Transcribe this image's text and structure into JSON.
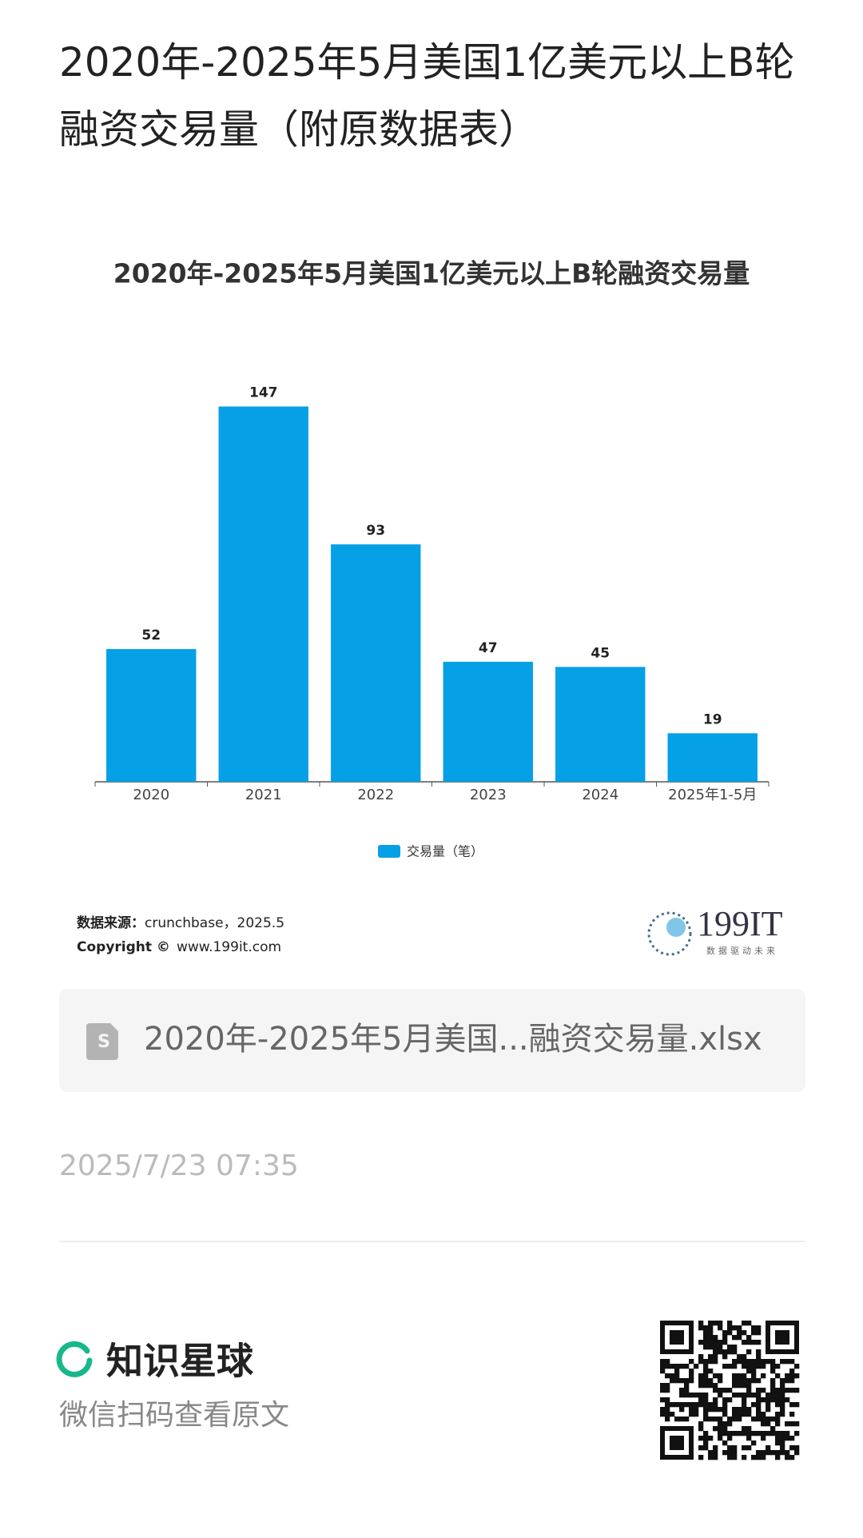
{
  "header": {
    "title": "2020年-2025年5月美国1亿美元以上B轮融资交易量（附原数据表）"
  },
  "chart_data": {
    "type": "bar",
    "title": "2020年-2025年5月美国1亿美元以上B轮融资交易量",
    "categories": [
      "2020",
      "2021",
      "2022",
      "2023",
      "2024",
      "2025年1-5月"
    ],
    "series": [
      {
        "name": "交易量（笔）",
        "color": "#06a0e6",
        "values": [
          52,
          147,
          93,
          47,
          45,
          19
        ]
      }
    ],
    "ylim": [
      0,
      160
    ],
    "legend": "bottom"
  },
  "source": {
    "label": "数据来源：",
    "text": "crunchbase，2025.5"
  },
  "copyright": {
    "label": "Copyright ©",
    "text": "www.199it.com"
  },
  "logo": {
    "name": "199IT",
    "slogan": "数据驱动未来"
  },
  "attachment": {
    "file_name": "2020年-2025年5月美国...融资交易量.xlsx"
  },
  "timestamp": "2025/7/23 07:35",
  "footer": {
    "brand": "知识星球",
    "hint": "微信扫码查看原文"
  }
}
